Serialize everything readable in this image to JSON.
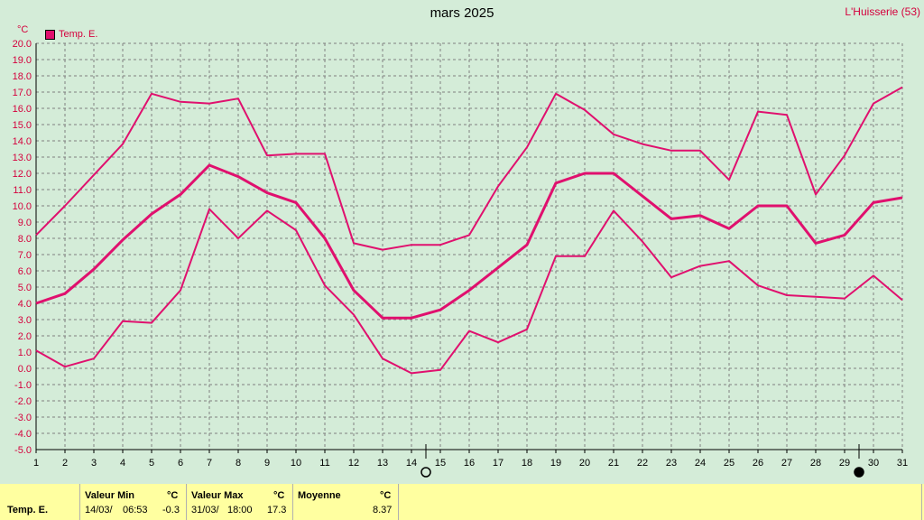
{
  "header": {
    "title": "mars 2025",
    "station": "L'Huisserie (53)",
    "unit": "°C"
  },
  "legend": {
    "label": "Temp. E.",
    "color": "#e0106e"
  },
  "chart_data": {
    "type": "line",
    "x": [
      1,
      2,
      3,
      4,
      5,
      6,
      7,
      8,
      9,
      10,
      11,
      12,
      13,
      14,
      15,
      16,
      17,
      18,
      19,
      20,
      21,
      22,
      23,
      24,
      25,
      26,
      27,
      28,
      29,
      30,
      31
    ],
    "ylim": [
      -5.0,
      20.0
    ],
    "ystep": 1.0,
    "grid": true,
    "legend_position": "top-left",
    "series": [
      {
        "name": "Temp. E.",
        "role": "max",
        "values": [
          8.2,
          10.0,
          11.9,
          13.8,
          16.9,
          16.4,
          16.3,
          16.6,
          13.1,
          13.2,
          13.2,
          7.7,
          7.3,
          7.6,
          7.6,
          8.2,
          11.2,
          13.6,
          16.9,
          15.9,
          14.4,
          13.8,
          13.4,
          13.4,
          11.6,
          15.8,
          15.6,
          10.7,
          13.1,
          16.3,
          17.3
        ]
      },
      {
        "name": "Temp. E.",
        "role": "mean",
        "values": [
          4.0,
          4.6,
          6.1,
          7.9,
          9.5,
          10.7,
          12.5,
          11.8,
          10.8,
          10.2,
          8.0,
          4.8,
          3.1,
          3.1,
          3.6,
          4.8,
          6.2,
          7.6,
          11.4,
          12.0,
          12.0,
          10.6,
          9.2,
          9.4,
          8.6,
          10.0,
          10.0,
          7.7,
          8.2,
          10.2,
          10.5
        ]
      },
      {
        "name": "Temp. E.",
        "role": "min",
        "values": [
          1.1,
          0.1,
          0.6,
          2.9,
          2.8,
          4.8,
          9.8,
          8.0,
          9.7,
          8.5,
          5.1,
          3.3,
          0.6,
          -0.3,
          -0.1,
          2.3,
          1.6,
          2.4,
          6.9,
          6.9,
          9.7,
          7.8,
          5.6,
          6.3,
          6.6,
          5.1,
          4.5,
          4.4,
          4.3,
          5.7,
          4.2
        ]
      }
    ],
    "moon_markers": [
      {
        "after_day": 14,
        "phase": "full-moon-icon"
      },
      {
        "after_day": 29,
        "phase": "new-moon-icon"
      }
    ],
    "colors": {
      "line": "#e0106e",
      "axis_text": "#d4003c",
      "grid": "#808080"
    }
  },
  "footer": {
    "series_label": "Temp. E.",
    "min": {
      "label": "Valeur Min",
      "unit": "°C",
      "date": "14/03/",
      "time": "06:53",
      "value": "-0.3"
    },
    "max": {
      "label": "Valeur Max",
      "unit": "°C",
      "date": "31/03/",
      "time": "18:00",
      "value": "17.3"
    },
    "mean": {
      "label": "Moyenne",
      "unit": "°C",
      "value": "8.37"
    }
  }
}
